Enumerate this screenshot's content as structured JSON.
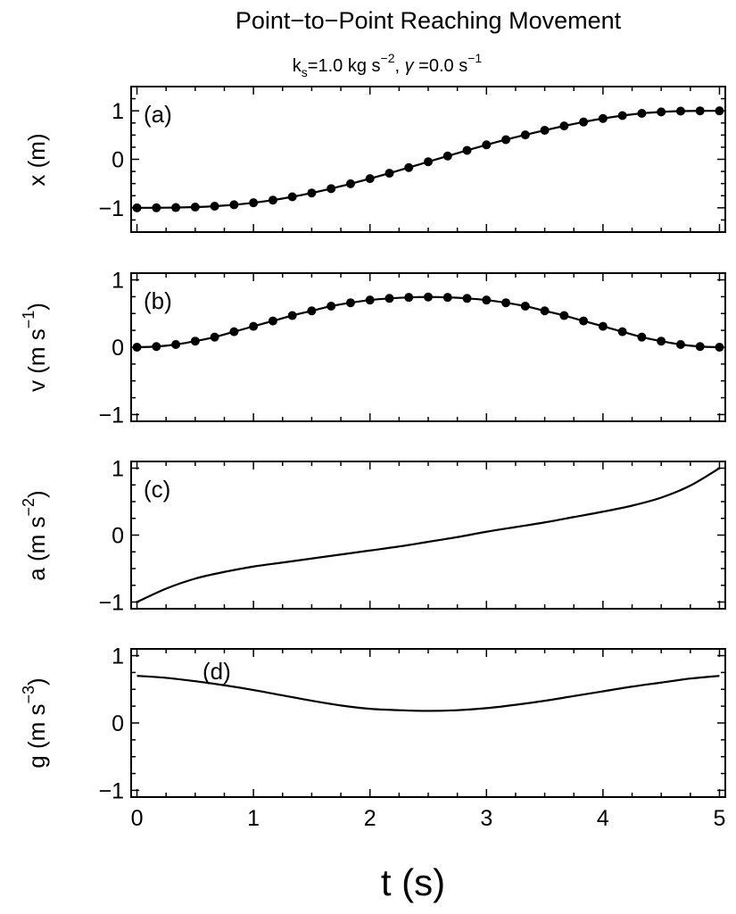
{
  "figure": {
    "title": "Point−to−Point Reaching Movement",
    "subtitle": {
      "k_base": "k",
      "k_sub": "s",
      "k_mid": "=1.0 kg s",
      "k_exp": "−2",
      "sep": ",  ",
      "gamma_sym": "γ",
      "gamma_mid": " =0.0 s",
      "gamma_exp": "−1"
    },
    "xlabel": "t (s)",
    "colors": {
      "line": "#000000",
      "marker": "#000000",
      "frame": "#000000",
      "background": "#ffffff"
    }
  },
  "chart_data": [
    {
      "type": "line",
      "panel_label": "(a)",
      "ylabel": {
        "base": "x (m)",
        "exp": ""
      },
      "xlim": [
        -0.05,
        5.05
      ],
      "ylim": [
        -1.5,
        1.5
      ],
      "xticks": [
        "0",
        "1",
        "2",
        "3",
        "4",
        "5"
      ],
      "yticks": [
        "−1",
        "0",
        "1"
      ],
      "ytick_values": [
        -1,
        0,
        1
      ],
      "markers": true,
      "x": [
        0,
        0.1667,
        0.3333,
        0.5,
        0.6667,
        0.8333,
        1.0,
        1.1667,
        1.3333,
        1.5,
        1.6667,
        1.8333,
        2.0,
        2.1667,
        2.3333,
        2.5,
        2.6667,
        2.8333,
        3.0,
        3.1667,
        3.3333,
        3.5,
        3.6667,
        3.8333,
        4.0,
        4.1667,
        4.3333,
        4.5,
        4.6667,
        4.8333,
        5.0
      ],
      "y": [
        -1.0,
        -0.999,
        -0.995,
        -0.985,
        -0.966,
        -0.937,
        -0.896,
        -0.841,
        -0.773,
        -0.694,
        -0.604,
        -0.504,
        -0.398,
        -0.287,
        -0.17,
        -0.05,
        0.068,
        0.185,
        0.298,
        0.405,
        0.504,
        0.599,
        0.688,
        0.77,
        0.842,
        0.902,
        0.948,
        0.978,
        0.994,
        0.999,
        1.0
      ]
    },
    {
      "type": "line",
      "panel_label": "(b)",
      "ylabel": {
        "base": "v (m s",
        "exp": "−1",
        "close": ")"
      },
      "xlim": [
        -0.05,
        5.05
      ],
      "ylim": [
        -1.1,
        1.1
      ],
      "xticks": [
        "0",
        "1",
        "2",
        "3",
        "4",
        "5"
      ],
      "yticks": [
        "−1",
        "0",
        "1"
      ],
      "ytick_values": [
        -1,
        0,
        1
      ],
      "markers": true,
      "x": [
        0,
        0.1667,
        0.3333,
        0.5,
        0.6667,
        0.8333,
        1.0,
        1.1667,
        1.3333,
        1.5,
        1.6667,
        1.8333,
        2.0,
        2.1667,
        2.3333,
        2.5,
        2.6667,
        2.8333,
        3.0,
        3.1667,
        3.3333,
        3.5,
        3.6667,
        3.8333,
        4.0,
        4.1667,
        4.3333,
        4.5,
        4.6667,
        4.8333,
        5.0
      ],
      "y": [
        0.0,
        0.01,
        0.04,
        0.09,
        0.15,
        0.23,
        0.31,
        0.39,
        0.47,
        0.54,
        0.61,
        0.66,
        0.7,
        0.725,
        0.74,
        0.745,
        0.74,
        0.725,
        0.7,
        0.66,
        0.61,
        0.54,
        0.47,
        0.39,
        0.31,
        0.23,
        0.15,
        0.09,
        0.04,
        0.01,
        0.0
      ]
    },
    {
      "type": "line",
      "panel_label": "(c)",
      "ylabel": {
        "base": "a (m s",
        "exp": "−2",
        "close": ")"
      },
      "xlim": [
        -0.05,
        5.05
      ],
      "ylim": [
        -1.1,
        1.1
      ],
      "xticks": [
        "0",
        "1",
        "2",
        "3",
        "4",
        "5"
      ],
      "yticks": [
        "−1",
        "0",
        "1"
      ],
      "ytick_values": [
        -1,
        0,
        1
      ],
      "markers": false,
      "x": [
        0,
        0.25,
        0.5,
        0.75,
        1.0,
        1.25,
        1.5,
        1.75,
        2.0,
        2.25,
        2.5,
        2.75,
        3.0,
        3.25,
        3.5,
        3.75,
        4.0,
        4.25,
        4.5,
        4.75,
        5.0
      ],
      "y": [
        -1.0,
        -0.8,
        -0.65,
        -0.55,
        -0.47,
        -0.41,
        -0.35,
        -0.29,
        -0.23,
        -0.17,
        -0.1,
        -0.03,
        0.05,
        0.12,
        0.19,
        0.27,
        0.35,
        0.44,
        0.56,
        0.74,
        1.0
      ]
    },
    {
      "type": "line",
      "panel_label": "(d)",
      "ylabel": {
        "base": "g (m s",
        "exp": "−3",
        "close": ")"
      },
      "xlim": [
        -0.05,
        5.05
      ],
      "ylim": [
        -1.1,
        1.1
      ],
      "xticks": [
        "0",
        "1",
        "2",
        "3",
        "4",
        "5"
      ],
      "yticks": [
        "−1",
        "0",
        "1"
      ],
      "ytick_values": [
        -1,
        0,
        1
      ],
      "markers": false,
      "x": [
        0,
        0.25,
        0.5,
        0.75,
        1.0,
        1.25,
        1.5,
        1.75,
        2.0,
        2.25,
        2.5,
        2.75,
        3.0,
        3.25,
        3.5,
        3.75,
        4.0,
        4.25,
        4.5,
        4.75,
        5.0
      ],
      "y": [
        0.7,
        0.67,
        0.62,
        0.56,
        0.49,
        0.41,
        0.33,
        0.26,
        0.21,
        0.19,
        0.18,
        0.19,
        0.22,
        0.27,
        0.33,
        0.4,
        0.47,
        0.54,
        0.6,
        0.66,
        0.7
      ]
    }
  ]
}
